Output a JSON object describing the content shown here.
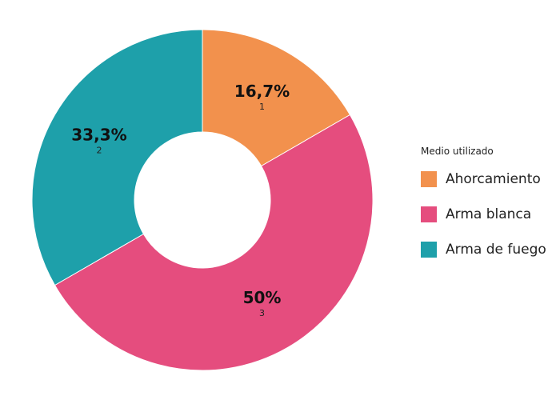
{
  "chart_data": {
    "type": "pie",
    "donut": true,
    "legend_title": "Medio utilizado",
    "legend_position": "right",
    "slices": [
      {
        "label": "Ahorcamiento",
        "count": 1,
        "percent_label": "16,7%",
        "count_label": "1",
        "color": "#F2914D"
      },
      {
        "label": "Arma blanca",
        "count": 3,
        "percent_label": "50%",
        "count_label": "3",
        "color": "#E54D7E"
      },
      {
        "label": "Arma de fuego",
        "count": 2,
        "percent_label": "33,3%",
        "count_label": "2",
        "color": "#1EA0AA"
      }
    ]
  }
}
